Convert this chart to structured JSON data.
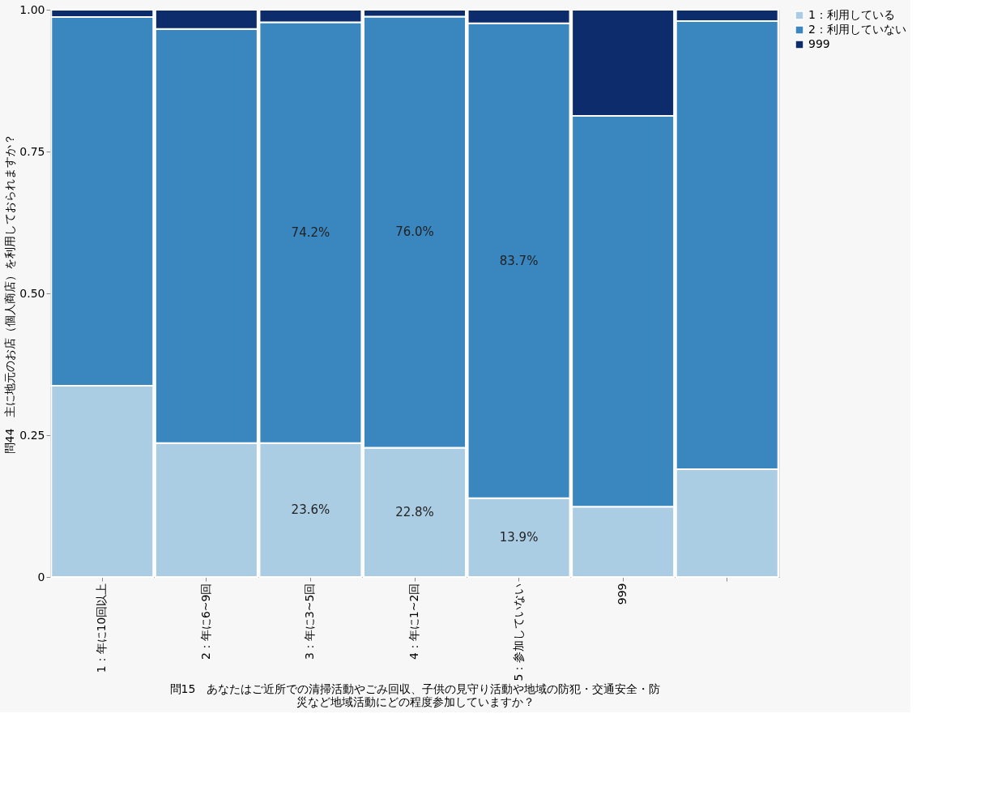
{
  "chart_data": {
    "type": "bar",
    "stacked": true,
    "xlabel": "問15　あなたはご近所での清掃活動やごみ回収、子供の見守り活動や地域の防犯・交通安全・防災など地域活動にどの程度参加していますか？",
    "ylabel": "問44　主に地元のお店（個人商店）を利用しておられますか？",
    "categories": [
      "1：年に10回以上",
      "2：年に6~9回",
      "3：年に3~5回",
      "4：年に1~2回",
      "5：参加していない",
      "999",
      null
    ],
    "series": [
      {
        "name": "1：利用している",
        "color": "#abcde3",
        "values": [
          0.337,
          0.236,
          0.236,
          0.228,
          0.139,
          0.124,
          0.19
        ],
        "value_labels": [
          null,
          null,
          "23.6%",
          "22.8%",
          "13.9%",
          null,
          null
        ]
      },
      {
        "name": "2：利用していない",
        "color": "#3a87c0",
        "values": [
          0.65,
          0.73,
          0.742,
          0.76,
          0.837,
          0.689,
          0.79
        ],
        "value_labels": [
          null,
          null,
          "74.2%",
          "76.0%",
          "83.7%",
          null,
          null
        ]
      },
      {
        "name": "999",
        "color": "#0d2c6c",
        "values": [
          0.013,
          0.034,
          0.022,
          0.012,
          0.024,
          0.187,
          0.02
        ]
      }
    ],
    "ylim": [
      0,
      1
    ],
    "yticks": [
      0,
      {
        "value": 0.25,
        "label": "0.25"
      },
      {
        "value": 0.5,
        "label": "0.50"
      },
      {
        "value": 0.75,
        "label": "0.75"
      },
      {
        "value": 1,
        "label": "1.00"
      }
    ],
    "grid": false,
    "legend": "right"
  }
}
